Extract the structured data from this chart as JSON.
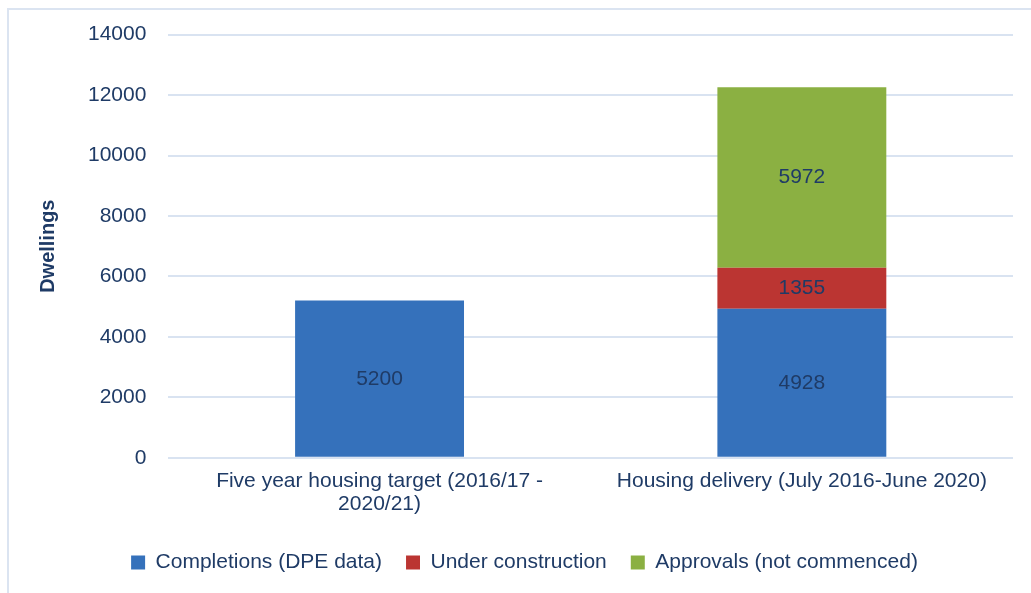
{
  "chart_data": {
    "type": "bar",
    "stacked": true,
    "ylabel": "Dwellings",
    "categories": [
      "Five year housing target (2016/17 - 2020/21)",
      "Housing delivery (July 2016-June 2020)"
    ],
    "series": [
      {
        "name": "Completions (DPE data)",
        "color": "#3571bb",
        "values": [
          5200,
          4928
        ]
      },
      {
        "name": "Under construction",
        "color": "#bb3532",
        "values": [
          null,
          1355
        ]
      },
      {
        "name": "Approvals (not commenced)",
        "color": "#8bb042",
        "values": [
          null,
          5972
        ]
      }
    ],
    "ylim": [
      0,
      14000
    ],
    "yticks": [
      0,
      2000,
      4000,
      6000,
      8000,
      10000,
      12000,
      14000
    ],
    "grid": "y",
    "legend": "bottom",
    "data_labels": true
  }
}
